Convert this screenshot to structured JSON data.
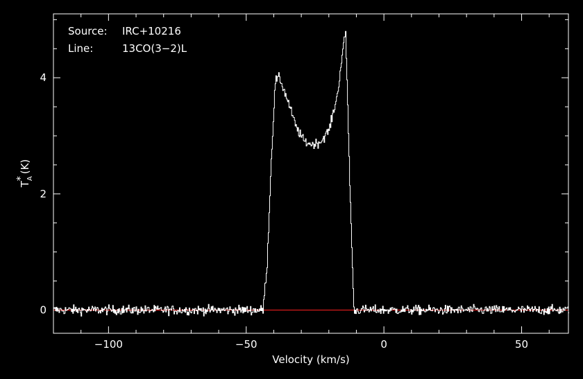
{
  "chart_data": {
    "type": "line",
    "title": "",
    "xlabel": "Velocity (km/s)",
    "ylabel_main": "T",
    "ylabel_sub": "A",
    "ylabel_sup": "*",
    "ylabel_unit": "(K)",
    "xlim": [
      -120,
      67
    ],
    "ylim": [
      -0.4,
      5.1
    ],
    "xticks": [
      -100,
      -50,
      0,
      50
    ],
    "xtick_labels": [
      "−100",
      "−50",
      "0",
      "50"
    ],
    "yticks": [
      0,
      2,
      4
    ],
    "ytick_labels": [
      "0",
      "2",
      "4"
    ],
    "baseline": 0,
    "colors": {
      "background": "#000000",
      "spectrum": "#ffffff",
      "baseline": "#ff2020"
    },
    "annotations": {
      "source_label": "Source:",
      "source_value": "IRC+10216",
      "line_label": "Line:",
      "line_value": "13CO(3−2)L"
    },
    "series": [
      {
        "x": [
          -120,
          -44,
          -42.5,
          -41,
          -39.5,
          -38,
          -35,
          -32,
          -29,
          -26,
          -23,
          -20,
          -17,
          -15.5,
          -14,
          -12.5,
          -11,
          67
        ],
        "y": [
          0,
          0,
          0.8,
          2.6,
          3.95,
          4.0,
          3.6,
          3.15,
          2.9,
          2.85,
          2.9,
          3.1,
          3.7,
          4.3,
          4.8,
          2.2,
          0,
          0
        ],
        "noise_rms": 0.04
      }
    ]
  }
}
